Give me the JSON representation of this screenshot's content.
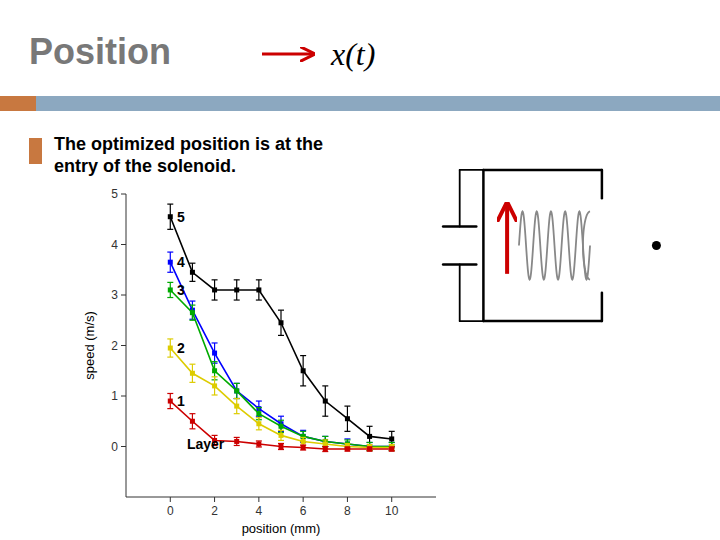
{
  "chart_data": {
    "type": "line",
    "title": "Position",
    "subtitle": "x(t)",
    "body_text": [
      "The optimized position is at the",
      "entry of the solenoid."
    ],
    "xlabel": "position (mm)",
    "ylabel": "speed (m/s)",
    "xlim": [
      -2,
      12
    ],
    "ylim": [
      -1,
      5
    ],
    "xticks": [
      0,
      2,
      4,
      6,
      8,
      10
    ],
    "yticks": [
      0,
      1,
      2,
      3,
      4,
      5
    ],
    "grid": false,
    "marker": "square",
    "line_style": "solid",
    "x": [
      0,
      1,
      2,
      3,
      4,
      5,
      6,
      7,
      8,
      9,
      10
    ],
    "series": [
      {
        "color": "#000000",
        "values": [
          4.55,
          3.45,
          3.1,
          3.1,
          3.1,
          2.45,
          1.5,
          0.9,
          0.55,
          0.2,
          0.15
        ],
        "errors": [
          0.25,
          0.18,
          0.2,
          0.2,
          0.2,
          0.25,
          0.3,
          0.3,
          0.25,
          0.2,
          0.15
        ]
      },
      {
        "color": "#0000ff",
        "values": [
          3.65,
          2.7,
          1.85,
          1.1,
          0.75,
          0.45,
          0.2,
          0.1,
          0.05,
          0.0,
          0.0
        ],
        "errors": [
          0.2,
          0.18,
          0.2,
          0.15,
          0.15,
          0.15,
          0.12,
          0.1,
          0.1,
          0.08,
          0.08
        ]
      },
      {
        "color": "#00aa00",
        "values": [
          3.1,
          2.65,
          1.5,
          1.1,
          0.65,
          0.4,
          0.2,
          0.1,
          0.05,
          0.0,
          0.0
        ],
        "errors": [
          0.15,
          0.15,
          0.18,
          0.15,
          0.12,
          0.12,
          0.1,
          0.1,
          0.08,
          0.08,
          0.08
        ]
      },
      {
        "color": "#ddcc00",
        "values": [
          1.95,
          1.45,
          1.2,
          0.8,
          0.45,
          0.22,
          0.1,
          0.05,
          0.0,
          -0.02,
          -0.02
        ],
        "errors": [
          0.18,
          0.18,
          0.18,
          0.15,
          0.12,
          0.1,
          0.08,
          0.08,
          0.06,
          0.06,
          0.06
        ]
      },
      {
        "color": "#cc0000",
        "values": [
          0.9,
          0.5,
          0.12,
          0.1,
          0.05,
          0.0,
          -0.02,
          -0.05,
          -0.05,
          -0.05,
          -0.05
        ],
        "errors": [
          0.15,
          0.15,
          0.1,
          0.08,
          0.06,
          0.06,
          0.05,
          0.05,
          0.04,
          0.04,
          0.04
        ]
      }
    ],
    "annotations": [
      {
        "text": "5",
        "x": 0.3,
        "y": 4.55
      },
      {
        "text": "4",
        "x": 0.3,
        "y": 3.65
      },
      {
        "text": "3",
        "x": 0.3,
        "y": 3.1
      },
      {
        "text": "2",
        "x": 0.3,
        "y": 1.95
      },
      {
        "text": "1",
        "x": 0.3,
        "y": 0.9
      },
      {
        "text": "Layer",
        "x": 0.75,
        "y": 0.05
      }
    ]
  }
}
